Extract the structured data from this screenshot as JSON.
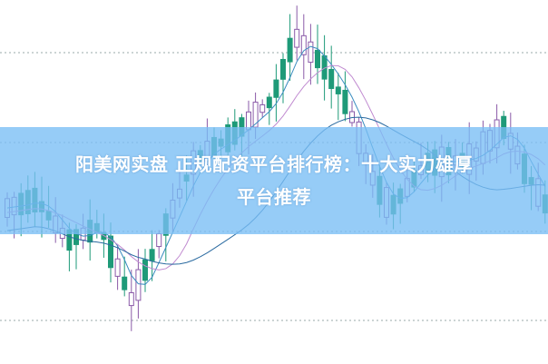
{
  "title": {
    "line1": "阳美网实盘 正规配资平台排行榜：十大实力雄厚",
    "line2": "平台推荐"
  },
  "colors": {
    "down_candle": "#1e9a78",
    "up_candle": "#8a5aa8",
    "banner": "#8ecbf5",
    "ma_short": "#3a8cc0",
    "ma_mid": "#c08ad0",
    "ma_long": "#2a6aa0"
  }
}
